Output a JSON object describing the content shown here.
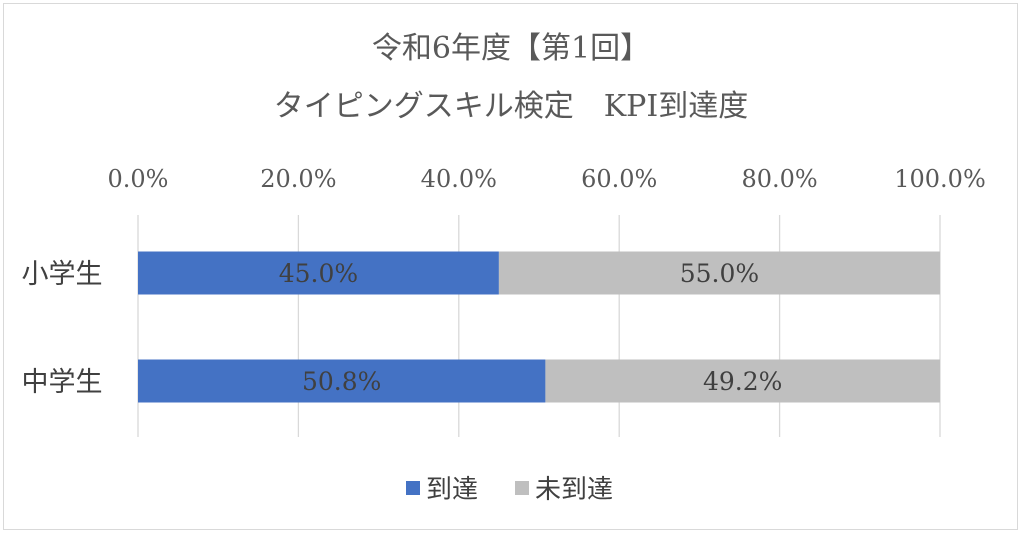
{
  "chart_data": {
    "type": "bar",
    "orientation": "horizontal",
    "stacked": true,
    "title_lines": [
      "令和6年度【第1回】",
      "タイピングスキル検定　KPI到達度"
    ],
    "categories": [
      "小学生",
      "中学生"
    ],
    "series": [
      {
        "name": "到達",
        "color": "#4472c4",
        "values": [
          45.0,
          50.8
        ]
      },
      {
        "name": "未到達",
        "color": "#bfbfbf",
        "values": [
          55.0,
          49.2
        ]
      }
    ],
    "xlim": [
      0,
      100
    ],
    "x_ticks": [
      0,
      20,
      40,
      60,
      80,
      100
    ],
    "x_tick_labels": [
      "0.0%",
      "20.0%",
      "40.0%",
      "60.0%",
      "80.0%",
      "100.0%"
    ],
    "data_labels": [
      [
        "45.0%",
        "50.8%"
      ],
      [
        "55.0%",
        "49.2%"
      ]
    ],
    "axis_position": "top",
    "grid": true,
    "gridline_color": "#d9d9d9",
    "legend_position": "bottom"
  }
}
